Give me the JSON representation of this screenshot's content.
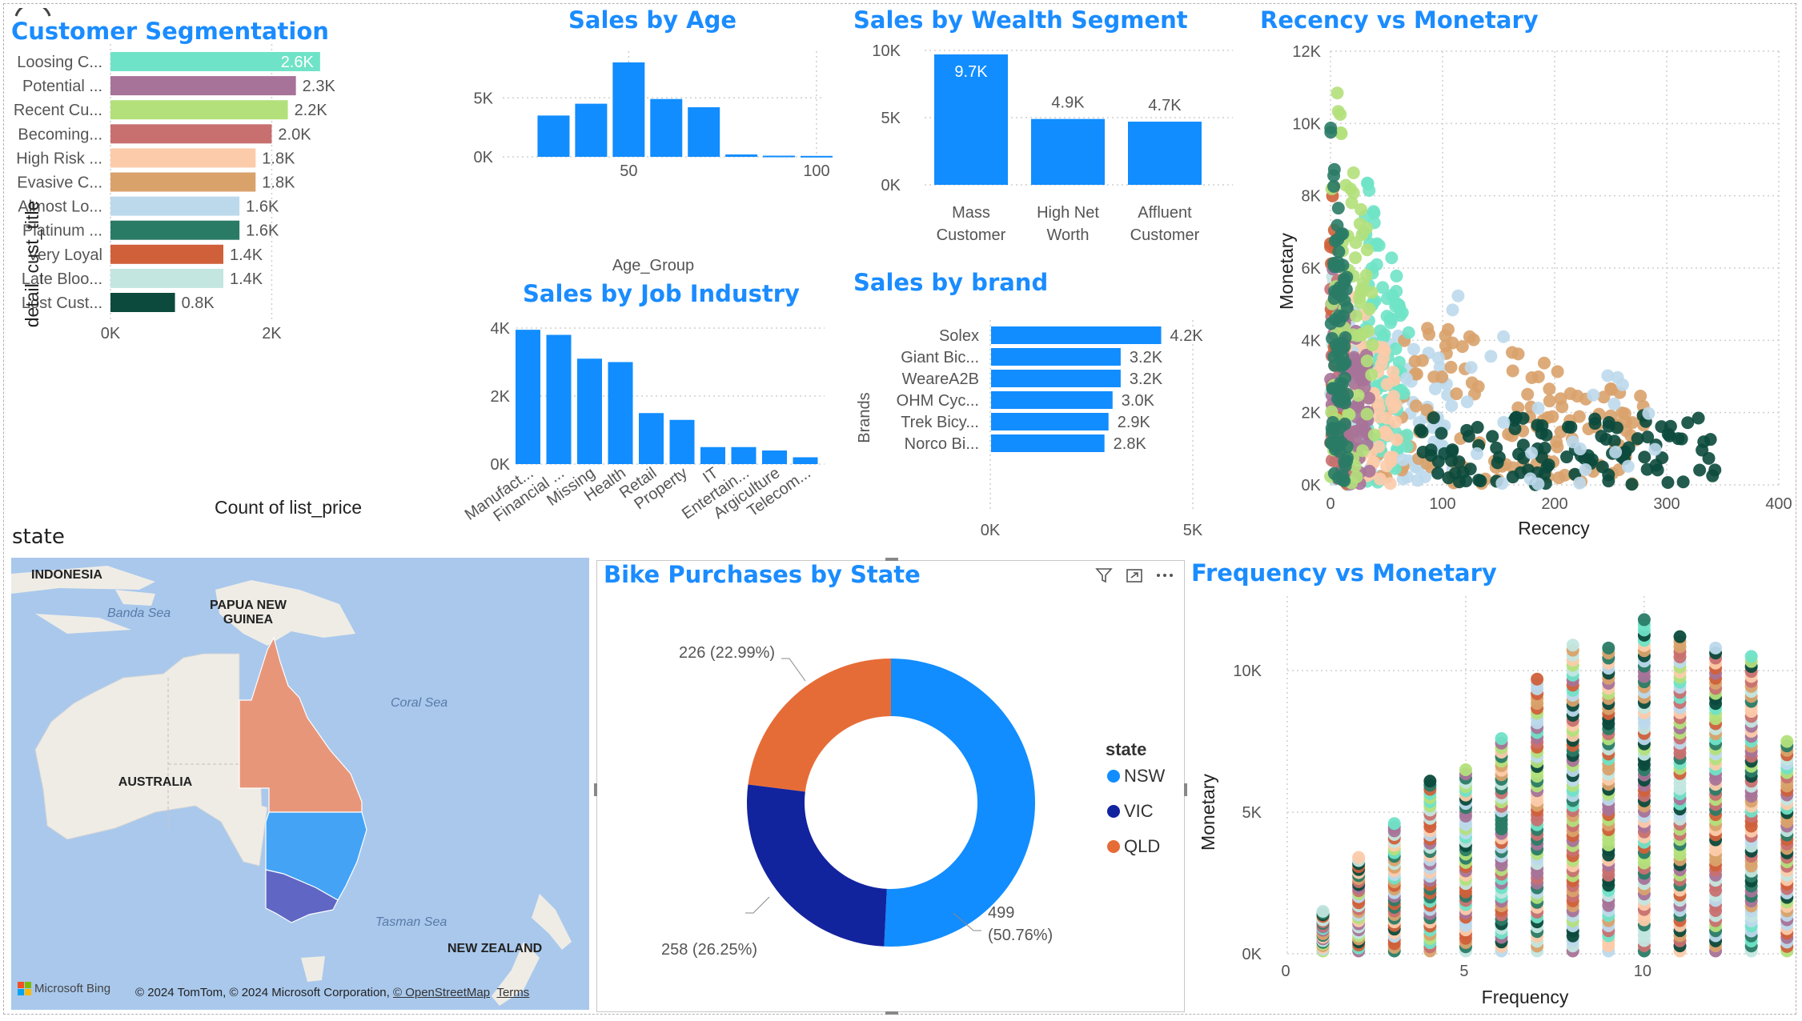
{
  "colors": {
    "accent": "#118dff",
    "title": "#1a8cff",
    "nsw": "#118dff",
    "vic": "#12239e",
    "qld": "#e66c37"
  },
  "customer_segmentation": {
    "title": "Customer Segmentation",
    "y_axis_title": "detail_cust_title",
    "x_axis_title": "Count of list_price",
    "chart_data": {
      "type": "bar",
      "orientation": "horizontal",
      "categories": [
        "Loosing C...",
        "Potential ...",
        "Recent Cu...",
        "Becoming...",
        "High Risk ...",
        "Evasive C...",
        "Almost Lo...",
        "Platinum ...",
        "Very Loyal",
        "Late Bloo...",
        "Lost Cust..."
      ],
      "values": [
        2600,
        2300,
        2200,
        2000,
        1800,
        1800,
        1600,
        1600,
        1400,
        1400,
        800
      ],
      "data_labels": [
        "2.6K",
        "2.3K",
        "2.2K",
        "2.0K",
        "1.8K",
        "1.8K",
        "1.6K",
        "1.6K",
        "1.4K",
        "1.4K",
        "0.8K"
      ],
      "colors": [
        "#6fe3c7",
        "#a77398",
        "#b3e07b",
        "#c87070",
        "#fccbaa",
        "#d9a26b",
        "#bcd9ec",
        "#2a7b66",
        "#d0603a",
        "#c3e6e0",
        "#0b4a3c"
      ],
      "xlim": [
        0,
        2800
      ],
      "x_ticks": [
        "0K",
        "2K"
      ]
    }
  },
  "sales_by_age": {
    "title": "Sales by Age",
    "x_axis_title": "Age_Group",
    "chart_data": {
      "type": "bar",
      "x": [
        30,
        40,
        50,
        60,
        70,
        80,
        90,
        100
      ],
      "values": [
        3500,
        4500,
        8000,
        4900,
        4200,
        200,
        100,
        80
      ],
      "ylim": [
        0,
        8000
      ],
      "y_ticks": [
        "0K",
        "5K"
      ],
      "x_ticks": [
        "50",
        "100"
      ]
    }
  },
  "sales_by_job_industry": {
    "title": "Sales by Job Industry",
    "chart_data": {
      "type": "bar",
      "categories": [
        "Manufact...",
        "Financial ...",
        "Missing",
        "Health",
        "Retail",
        "Property",
        "IT",
        "Entertain...",
        "Argiculture",
        "Telecom..."
      ],
      "values": [
        3950,
        3800,
        3100,
        3000,
        1500,
        1300,
        500,
        500,
        400,
        200
      ],
      "ylim": [
        0,
        4000
      ],
      "y_ticks": [
        "0K",
        "2K",
        "4K"
      ]
    }
  },
  "sales_by_wealth": {
    "title": "Sales by Wealth Segment",
    "chart_data": {
      "type": "bar",
      "categories": [
        "Mass Customer",
        "High Net Worth",
        "Affluent Customer"
      ],
      "category_lines": [
        [
          "Mass",
          "Customer"
        ],
        [
          "High Net",
          "Worth"
        ],
        [
          "Affluent",
          "Customer"
        ]
      ],
      "values": [
        9700,
        4900,
        4700
      ],
      "data_labels": [
        "9.7K",
        "4.9K",
        "4.7K"
      ],
      "ylim": [
        0,
        10000
      ],
      "y_ticks": [
        "0K",
        "5K",
        "10K"
      ]
    }
  },
  "sales_by_brand": {
    "title": "Sales by brand",
    "y_axis_title": "Brands",
    "chart_data": {
      "type": "bar",
      "orientation": "horizontal",
      "categories": [
        "Solex",
        "Giant Bic...",
        "WeareA2B",
        "OHM Cyc...",
        "Trek Bicy...",
        "Norco Bi..."
      ],
      "values": [
        4200,
        3200,
        3200,
        3000,
        2900,
        2800
      ],
      "data_labels": [
        "4.2K",
        "3.2K",
        "3.2K",
        "3.0K",
        "2.9K",
        "2.8K"
      ],
      "xlim": [
        0,
        5000
      ],
      "x_ticks": [
        "0K",
        "5K"
      ]
    }
  },
  "recency_vs_monetary": {
    "title": "Recency vs Monetary",
    "x_axis_title": "Recency",
    "y_axis_title": "Monetary",
    "chart_data": {
      "type": "scatter",
      "xlim": [
        0,
        400
      ],
      "ylim": [
        0,
        12000
      ],
      "x_ticks": [
        "0",
        "100",
        "200",
        "300",
        "400"
      ],
      "y_ticks": [
        "0K",
        "2K",
        "4K",
        "6K",
        "8K",
        "10K",
        "12K"
      ],
      "series_colors": [
        "#6fe3c7",
        "#a77398",
        "#b3e07b",
        "#c87070",
        "#fccbaa",
        "#d9a26b",
        "#bcd9ec",
        "#2a7b66",
        "#d0603a",
        "#c3e6e0",
        "#0b4a3c"
      ]
    }
  },
  "state_map": {
    "title": "state",
    "labels": {
      "indonesia": "INDONESIA",
      "banda_sea": "Banda Sea",
      "png": [
        "PAPUA NEW",
        "GUINEA"
      ],
      "coral_sea": "Coral Sea",
      "australia": "AUSTRALIA",
      "tasman_sea": "Tasman Sea",
      "nz": "NEW ZEALAND"
    },
    "bing": "Microsoft Bing",
    "copyright": "© 2024 TomTom, © 2024 Microsoft Corporation, ",
    "osm": "© OpenStreetMap",
    "terms": "Terms"
  },
  "bike_purchases": {
    "title": "Bike Purchases by State",
    "legend_title": "state",
    "chart_data": {
      "type": "pie",
      "donut": true,
      "categories": [
        "NSW",
        "VIC",
        "QLD"
      ],
      "values": [
        499,
        258,
        226
      ],
      "labels": [
        "499",
        "258 (26.25%)",
        "226 (22.99%)"
      ],
      "nsw_pct": "(50.76%)",
      "colors": [
        "#118dff",
        "#12239e",
        "#e66c37"
      ]
    },
    "icons": [
      "filter-icon",
      "focus-mode-icon",
      "more-options-icon"
    ]
  },
  "frequency_vs_monetary": {
    "title": "Frequency vs Monetary",
    "x_axis_title": "Frequency",
    "y_axis_title": "Monetary",
    "chart_data": {
      "type": "scatter",
      "xlim": [
        0,
        14
      ],
      "ylim": [
        0,
        12000
      ],
      "x_ticks": [
        "0",
        "5",
        "10"
      ],
      "y_ticks": [
        "0K",
        "5K",
        "10K"
      ],
      "x_values": [
        1,
        2,
        3,
        4,
        5,
        6,
        7,
        8,
        9,
        10,
        11,
        12,
        13,
        14
      ],
      "max_monetary": [
        1500,
        3400,
        4600,
        6100,
        6500,
        7600,
        9700,
        10900,
        10800,
        11800,
        11200,
        10800,
        10500,
        7500
      ]
    }
  }
}
